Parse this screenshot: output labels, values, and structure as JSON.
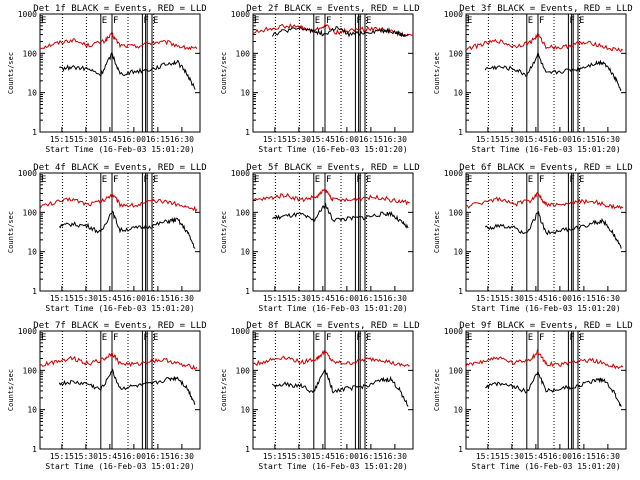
{
  "colors": {
    "events": "#000000",
    "lld": "#cc0000",
    "axis": "#000000",
    "background": "#ffffff"
  },
  "ylabel": "Counts/sec",
  "xlabel": "Start Time (16-Feb-03 15:01:20)",
  "markers": [
    "E",
    "F",
    "F",
    "E"
  ],
  "chart_data": [
    {
      "type": "line",
      "title": "Det 1f BLACK = Events, RED = LLD",
      "ylabel": "Counts/sec",
      "xlabel": "Start Time (16-Feb-03 15:01:20)",
      "yscale": "log",
      "ylim": [
        1,
        1000
      ],
      "yticks": [
        "1",
        "10",
        "100",
        "1000"
      ],
      "xticks": [
        "15:15",
        "15:30",
        "15:45",
        "16:00",
        "16:15",
        "16:30"
      ],
      "x_unit": "minutes after 15:01:20",
      "xlim": [
        0,
        100
      ],
      "markers": [
        "E",
        "F",
        "F",
        "E"
      ],
      "series": [
        {
          "name": "LLD",
          "color": "red",
          "x": [
            0,
            10,
            20,
            30,
            40,
            45,
            50,
            60,
            70,
            80,
            90,
            98
          ],
          "values": [
            140,
            180,
            220,
            160,
            200,
            300,
            160,
            150,
            190,
            190,
            140,
            130
          ]
        },
        {
          "name": "Events",
          "color": "black",
          "x": [
            12,
            20,
            30,
            38,
            45,
            50,
            60,
            70,
            80,
            86,
            92,
            97
          ],
          "values": [
            40,
            45,
            40,
            28,
            100,
            30,
            35,
            40,
            55,
            60,
            30,
            12
          ]
        }
      ]
    },
    {
      "type": "line",
      "title": "Det 2f BLACK = Events, RED = LLD",
      "ylabel": "Counts/sec",
      "xlabel": "Start Time (16-Feb-03 15:01:20)",
      "yscale": "log",
      "ylim": [
        1,
        1000
      ],
      "yticks": [
        "1",
        "10",
        "100",
        "1000"
      ],
      "xticks": [
        "15:15",
        "15:30",
        "15:45",
        "16:00",
        "16:15",
        "16:30"
      ],
      "x_unit": "minutes after 15:01:20",
      "xlim": [
        0,
        100
      ],
      "markers": [
        "E",
        "F",
        "F",
        "E"
      ],
      "series": [
        {
          "name": "LLD",
          "color": "red",
          "x": [
            0,
            10,
            20,
            30,
            38,
            45,
            52,
            60,
            70,
            80,
            90,
            100
          ],
          "values": [
            340,
            420,
            500,
            460,
            360,
            520,
            340,
            380,
            420,
            420,
            330,
            300
          ]
        },
        {
          "name": "Events",
          "color": "black",
          "x": [
            12,
            20,
            30,
            38,
            45,
            52,
            60,
            70,
            80,
            86,
            92,
            97
          ],
          "values": [
            300,
            380,
            420,
            380,
            300,
            450,
            300,
            340,
            380,
            380,
            300,
            280
          ]
        }
      ]
    },
    {
      "type": "line",
      "title": "Det 3f BLACK = Events, RED = LLD",
      "ylabel": "Counts/sec",
      "xlabel": "Start Time (16-Feb-03 15:01:20)",
      "yscale": "log",
      "ylim": [
        1,
        1000
      ],
      "yticks": [
        "1",
        "10",
        "100",
        "1000"
      ],
      "xticks": [
        "15:15",
        "15:30",
        "15:45",
        "16:00",
        "16:15",
        "16:30"
      ],
      "x_unit": "minutes after 15:01:20",
      "xlim": [
        0,
        100
      ],
      "markers": [
        "E",
        "F",
        "F",
        "E"
      ],
      "series": [
        {
          "name": "LLD",
          "color": "red",
          "x": [
            0,
            10,
            20,
            30,
            40,
            45,
            50,
            60,
            70,
            80,
            90,
            98
          ],
          "values": [
            130,
            170,
            210,
            150,
            190,
            290,
            150,
            140,
            180,
            180,
            130,
            120
          ]
        },
        {
          "name": "Events",
          "color": "black",
          "x": [
            12,
            20,
            30,
            38,
            45,
            50,
            60,
            70,
            80,
            86,
            92,
            97
          ],
          "values": [
            40,
            45,
            40,
            28,
            95,
            30,
            35,
            40,
            55,
            60,
            30,
            12
          ]
        }
      ]
    },
    {
      "type": "line",
      "title": "Det 4f BLACK = Events, RED = LLD",
      "ylabel": "Counts/sec",
      "xlabel": "Start Time (16-Feb-03 15:01:20)",
      "yscale": "log",
      "ylim": [
        1,
        1000
      ],
      "yticks": [
        "1",
        "10",
        "100",
        "1000"
      ],
      "xticks": [
        "15:15",
        "15:30",
        "15:45",
        "16:00",
        "16:15",
        "16:30"
      ],
      "x_unit": "minutes after 15:01:20",
      "xlim": [
        0,
        100
      ],
      "markers": [
        "E",
        "F",
        "F",
        "E"
      ],
      "series": [
        {
          "name": "LLD",
          "color": "red",
          "x": [
            0,
            10,
            20,
            30,
            40,
            45,
            50,
            60,
            70,
            80,
            90,
            98
          ],
          "values": [
            140,
            180,
            220,
            160,
            200,
            300,
            160,
            150,
            190,
            190,
            140,
            120
          ]
        },
        {
          "name": "Events",
          "color": "black",
          "x": [
            12,
            20,
            30,
            38,
            45,
            50,
            60,
            70,
            80,
            86,
            92,
            97
          ],
          "values": [
            45,
            50,
            45,
            30,
            110,
            35,
            40,
            45,
            60,
            65,
            32,
            12
          ]
        }
      ]
    },
    {
      "type": "line",
      "title": "Det 5f BLACK = Events, RED = LLD",
      "ylabel": "Counts/sec",
      "xlabel": "Start Time (16-Feb-03 15:01:20)",
      "yscale": "log",
      "ylim": [
        1,
        1000
      ],
      "yticks": [
        "1",
        "10",
        "100",
        "1000"
      ],
      "xticks": [
        "15:15",
        "15:30",
        "15:45",
        "16:00",
        "16:15",
        "16:30"
      ],
      "x_unit": "minutes after 15:01:20",
      "xlim": [
        0,
        100
      ],
      "markers": [
        "E",
        "F",
        "F",
        "E"
      ],
      "series": [
        {
          "name": "LLD",
          "color": "red",
          "x": [
            0,
            10,
            20,
            30,
            40,
            45,
            50,
            60,
            70,
            80,
            90,
            98
          ],
          "values": [
            200,
            230,
            280,
            210,
            250,
            380,
            210,
            200,
            240,
            240,
            190,
            180
          ]
        },
        {
          "name": "Events",
          "color": "black",
          "x": [
            12,
            20,
            30,
            38,
            45,
            50,
            60,
            70,
            80,
            86,
            92,
            97
          ],
          "values": [
            70,
            80,
            90,
            60,
            160,
            65,
            70,
            75,
            90,
            95,
            60,
            40
          ]
        }
      ]
    },
    {
      "type": "line",
      "title": "Det 6f BLACK = Events, RED = LLD",
      "ylabel": "Counts/sec",
      "xlabel": "Start Time (16-Feb-03 15:01:20)",
      "yscale": "log",
      "ylim": [
        1,
        1000
      ],
      "yticks": [
        "1",
        "10",
        "100",
        "1000"
      ],
      "xticks": [
        "15:15",
        "15:30",
        "15:45",
        "16:00",
        "16:15",
        "16:30"
      ],
      "x_unit": "minutes after 15:01:20",
      "xlim": [
        0,
        100
      ],
      "markers": [
        "E",
        "F",
        "F",
        "E"
      ],
      "series": [
        {
          "name": "LLD",
          "color": "red",
          "x": [
            0,
            10,
            20,
            30,
            40,
            45,
            50,
            60,
            70,
            80,
            90,
            98
          ],
          "values": [
            140,
            180,
            220,
            160,
            200,
            300,
            160,
            150,
            190,
            190,
            140,
            130
          ]
        },
        {
          "name": "Events",
          "color": "black",
          "x": [
            12,
            20,
            30,
            38,
            45,
            50,
            60,
            70,
            80,
            86,
            92,
            97
          ],
          "values": [
            40,
            45,
            40,
            28,
            100,
            30,
            35,
            40,
            55,
            60,
            30,
            12
          ]
        }
      ]
    },
    {
      "type": "line",
      "title": "Det 7f BLACK = Events, RED = LLD",
      "ylabel": "Counts/sec",
      "xlabel": "Start Time (16-Feb-03 15:01:20)",
      "yscale": "log",
      "ylim": [
        1,
        1000
      ],
      "yticks": [
        "1",
        "10",
        "100",
        "1000"
      ],
      "xticks": [
        "15:15",
        "15:30",
        "15:45",
        "16:00",
        "16:15",
        "16:30"
      ],
      "x_unit": "minutes after 15:01:20",
      "xlim": [
        0,
        100
      ],
      "markers": [
        "E",
        "F",
        "F",
        "E"
      ],
      "series": [
        {
          "name": "LLD",
          "color": "red",
          "x": [
            0,
            10,
            20,
            30,
            40,
            45,
            50,
            60,
            70,
            80,
            90,
            98
          ],
          "values": [
            130,
            170,
            210,
            150,
            190,
            280,
            150,
            140,
            180,
            180,
            130,
            120
          ]
        },
        {
          "name": "Events",
          "color": "black",
          "x": [
            12,
            20,
            30,
            38,
            45,
            50,
            60,
            70,
            80,
            86,
            92,
            97
          ],
          "values": [
            45,
            50,
            45,
            32,
            100,
            35,
            40,
            45,
            60,
            65,
            35,
            14
          ]
        }
      ]
    },
    {
      "type": "line",
      "title": "Det 8f BLACK = Events, RED = LLD",
      "ylabel": "Counts/sec",
      "xlabel": "Start Time (16-Feb-03 15:01:20)",
      "yscale": "log",
      "ylim": [
        1,
        1000
      ],
      "yticks": [
        "1",
        "10",
        "100",
        "1000"
      ],
      "xticks": [
        "15:15",
        "15:30",
        "15:45",
        "16:00",
        "16:15",
        "16:30"
      ],
      "x_unit": "minutes after 15:01:20",
      "xlim": [
        0,
        100
      ],
      "markers": [
        "E",
        "F",
        "F",
        "E"
      ],
      "series": [
        {
          "name": "LLD",
          "color": "red",
          "x": [
            0,
            10,
            20,
            30,
            40,
            45,
            50,
            60,
            70,
            80,
            90,
            98
          ],
          "values": [
            140,
            180,
            220,
            160,
            200,
            300,
            160,
            150,
            190,
            190,
            140,
            130
          ]
        },
        {
          "name": "Events",
          "color": "black",
          "x": [
            12,
            20,
            30,
            38,
            45,
            50,
            60,
            70,
            80,
            86,
            92,
            97
          ],
          "values": [
            40,
            45,
            40,
            28,
            110,
            30,
            35,
            40,
            55,
            60,
            30,
            12
          ]
        }
      ]
    },
    {
      "type": "line",
      "title": "Det 9f BLACK = Events, RED = LLD",
      "ylabel": "Counts/sec",
      "xlabel": "Start Time (16-Feb-03 15:01:20)",
      "yscale": "log",
      "ylim": [
        1,
        1000
      ],
      "yticks": [
        "1",
        "10",
        "100",
        "1000"
      ],
      "xticks": [
        "15:15",
        "15:30",
        "15:45",
        "16:00",
        "16:15",
        "16:30"
      ],
      "x_unit": "minutes after 15:01:20",
      "xlim": [
        0,
        100
      ],
      "markers": [
        "E",
        "F",
        "F",
        "E"
      ],
      "series": [
        {
          "name": "LLD",
          "color": "red",
          "x": [
            0,
            10,
            20,
            30,
            40,
            45,
            50,
            60,
            70,
            80,
            90,
            98
          ],
          "values": [
            130,
            170,
            210,
            150,
            190,
            290,
            150,
            140,
            180,
            180,
            130,
            120
          ]
        },
        {
          "name": "Events",
          "color": "black",
          "x": [
            12,
            20,
            30,
            38,
            45,
            50,
            60,
            70,
            80,
            86,
            92,
            97
          ],
          "values": [
            40,
            45,
            40,
            28,
            95,
            30,
            35,
            40,
            55,
            60,
            30,
            12
          ]
        }
      ]
    }
  ]
}
